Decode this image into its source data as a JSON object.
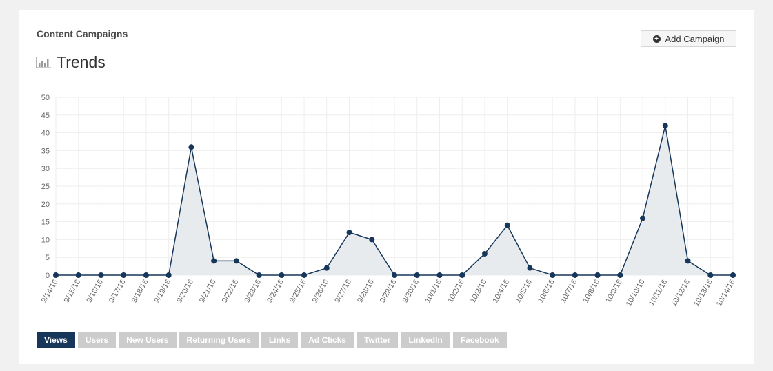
{
  "section_title": "Content Campaigns",
  "add_button_label": "Add Campaign",
  "trends_title": "Trends",
  "tabs": [
    {
      "label": "Views",
      "active": true
    },
    {
      "label": "Users",
      "active": false
    },
    {
      "label": "New Users",
      "active": false
    },
    {
      "label": "Returning Users",
      "active": false
    },
    {
      "label": "Links",
      "active": false
    },
    {
      "label": "Ad Clicks",
      "active": false
    },
    {
      "label": "Twitter",
      "active": false
    },
    {
      "label": "LinkedIn",
      "active": false
    },
    {
      "label": "Facebook",
      "active": false
    }
  ],
  "colors": {
    "line": "#16365a",
    "fill": "#e8ebee",
    "grid": "#eeeeee",
    "active_tab": "#16365a",
    "inactive_tab": "#cccccc"
  },
  "chart_data": {
    "type": "area",
    "title": "Trends",
    "xlabel": "",
    "ylabel": "",
    "ylim": [
      0,
      50
    ],
    "yticks": [
      0,
      5,
      10,
      15,
      20,
      25,
      30,
      35,
      40,
      45,
      50
    ],
    "grid": true,
    "categories": [
      "9/14/16",
      "9/15/16",
      "9/16/16",
      "9/17/16",
      "9/18/16",
      "9/19/16",
      "9/20/16",
      "9/21/16",
      "9/22/16",
      "9/23/16",
      "9/24/16",
      "9/25/16",
      "9/26/16",
      "9/27/16",
      "9/28/16",
      "9/29/16",
      "9/30/16",
      "10/1/16",
      "10/2/16",
      "10/3/16",
      "10/4/16",
      "10/5/16",
      "10/6/16",
      "10/7/16",
      "10/8/16",
      "10/9/16",
      "10/10/16",
      "10/11/16",
      "10/12/16",
      "10/13/16",
      "10/14/16"
    ],
    "values": [
      0,
      0,
      0,
      0,
      0,
      0,
      36,
      4,
      4,
      0,
      0,
      0,
      2,
      12,
      10,
      0,
      0,
      0,
      0,
      6,
      14,
      2,
      0,
      0,
      0,
      0,
      16,
      42,
      4,
      0,
      0
    ]
  }
}
